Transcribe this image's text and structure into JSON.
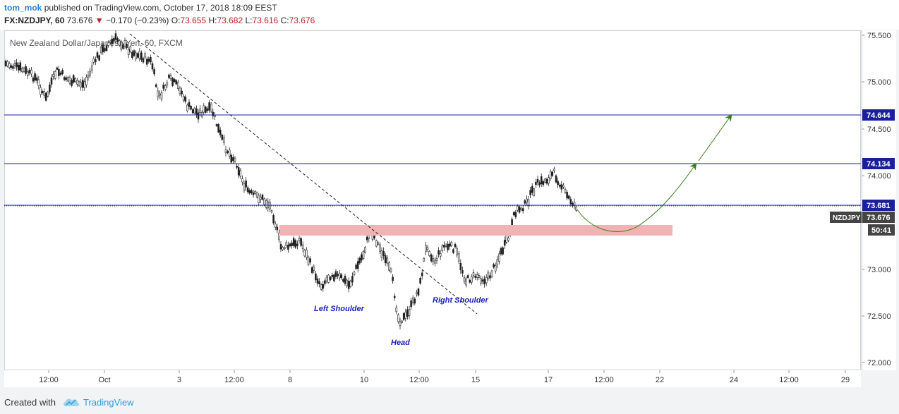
{
  "header": {
    "author": "tom_mok",
    "published": "published on TradingView.com, October 17, 2018 18:09 EEST",
    "symbol": "FX:NZDJPY, 60",
    "last": "73.676",
    "change": "−0.170 (−0.23%)",
    "open_label": "O:",
    "open": "73.655",
    "high_label": "H:",
    "high": "73.682",
    "low_label": "L:",
    "low": "73.616",
    "close_label": "C:",
    "close": "73.676",
    "down_arrow": "▼"
  },
  "chart": {
    "watermark": "New Zealand Dollar/Japanese Yen, 60, FXCM",
    "annotations": {
      "left_shoulder": "Left Shoulder",
      "head": "Head",
      "right_shoulder": "Right Shoulder"
    },
    "price_ticks": [
      "75.500",
      "75.000",
      "74.500",
      "74.000",
      "73.000",
      "72.500",
      "72.000"
    ],
    "level_labels": {
      "l1": "74.644",
      "l2": "74.134",
      "l3": "73.681",
      "symbol_tag": "NZDJPY",
      "current": "73.676",
      "countdown": "50:41"
    },
    "time_ticks": [
      "12:00",
      "Oct",
      "3",
      "12:00",
      "8",
      "10",
      "12:00",
      "15",
      "17",
      "12:00",
      "22",
      "24",
      "12:00",
      "29"
    ],
    "colors": {
      "level_line": "#1a1f9c",
      "zone": "#f0b2b2",
      "projection": "#3a7d1e",
      "label_bg": "#1a1f9c",
      "annotation": "#1a1fb8"
    }
  },
  "footer": {
    "created": "Created with",
    "brand": "TradingView"
  }
}
